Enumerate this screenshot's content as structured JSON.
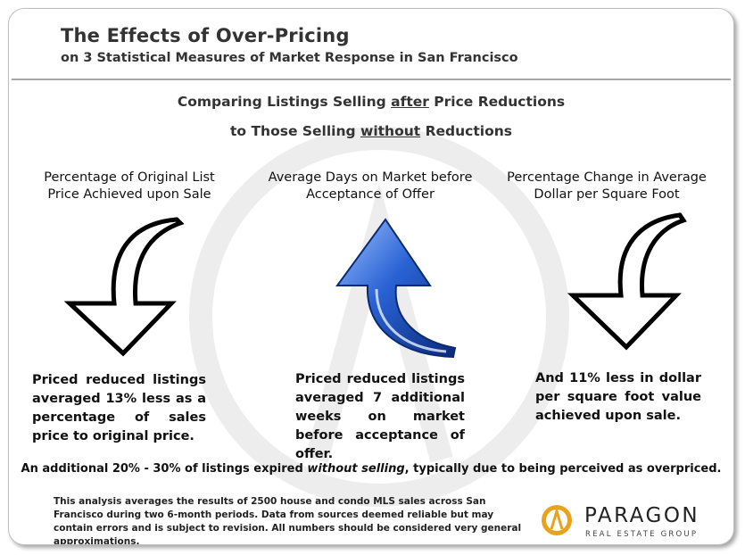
{
  "header": {
    "title": "The Effects of Over-Pricing",
    "subtitle": "on 3 Statistical Measures of Market Response in San Francisco"
  },
  "comparison": {
    "line1_pre": "Comparing Listings Selling ",
    "line1_em": "after",
    "line1_post": " Price Reductions",
    "line2_pre": "to Those Selling ",
    "line2_em": "without",
    "line2_post": " Reductions"
  },
  "columns": [
    {
      "heading": "Percentage of Original List Price Achieved upon Sale",
      "arrow": "down-arrow-outline-icon",
      "text": "Priced reduced listings averaged 13% less as a percentage of sales price to original price."
    },
    {
      "heading": "Average Days on Market before Acceptance of Offer",
      "arrow": "up-arrow-blue-icon",
      "text": "Priced reduced listings averaged 7 additional weeks on market before acceptance of offer."
    },
    {
      "heading": "Percentage Change in Average Dollar per Square Foot",
      "arrow": "down-arrow-outline-icon",
      "text": "And 11% less in dollar per square foot value achieved upon sale."
    }
  ],
  "bottom_note": {
    "pre": "An additional 20% - 30% of listings expired ",
    "em": "without selling",
    "post": ", typically due to being perceived as overpriced."
  },
  "footnote": "This analysis averages the results of 2500 house and condo MLS sales across San Francisco during two 6-month periods. Data from sources deemed reliable but may contain errors and is subject to revision.  All numbers should be considered  very general approximations.",
  "logo": {
    "name": "PARAGON",
    "tagline": "REAL ESTATE GROUP",
    "icon": "paragon-logo-icon"
  },
  "colors": {
    "arrow_blue": "#1f4fb0",
    "logo_gold": "#e8a21b",
    "watermark": "#ececec"
  }
}
